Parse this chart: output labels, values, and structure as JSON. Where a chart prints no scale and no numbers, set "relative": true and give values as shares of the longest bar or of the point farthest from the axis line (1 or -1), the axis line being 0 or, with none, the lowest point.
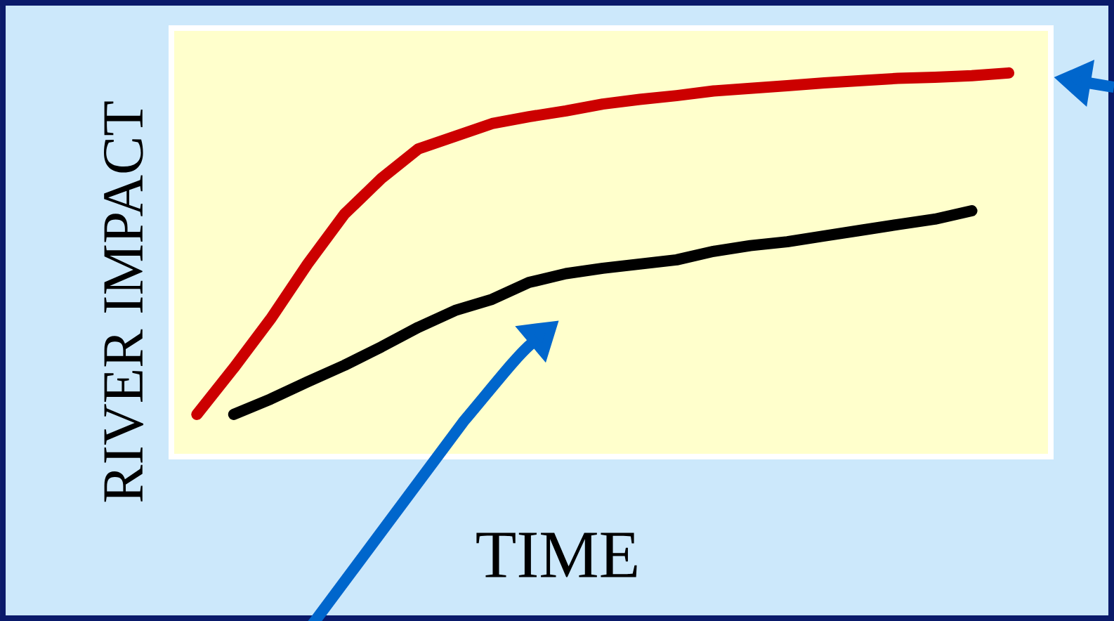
{
  "chart_data": {
    "type": "line",
    "relative": true,
    "xlabel": "TIME",
    "ylabel": "RIVER IMPACT",
    "tick_labels": false,
    "categories": [
      null,
      null,
      null,
      null,
      null,
      null,
      null,
      null,
      null,
      null,
      null,
      null,
      null,
      null,
      null,
      null,
      null,
      null,
      null,
      null,
      null,
      null,
      null
    ],
    "series": [
      {
        "color": "#cc0000",
        "values": [
          0.11,
          0.231,
          0.359,
          0.502,
          0.632,
          0.725,
          0.802,
          0.835,
          0.868,
          0.886,
          0.901,
          0.919,
          0.931,
          0.941,
          0.953,
          0.96,
          0.967,
          0.974,
          0.98,
          0.986,
          0.989,
          0.993,
          1
        ]
      },
      {
        "color": "#000000",
        "values": [
          null,
          0.11,
          0.15,
          0.195,
          0.238,
          0.286,
          0.337,
          0.381,
          0.41,
          0.454,
          0.477,
          0.491,
          0.502,
          0.513,
          0.535,
          0.55,
          0.56,
          0.575,
          0.59,
          0.605,
          0.619,
          0.641,
          null
        ]
      }
    ]
  }
}
